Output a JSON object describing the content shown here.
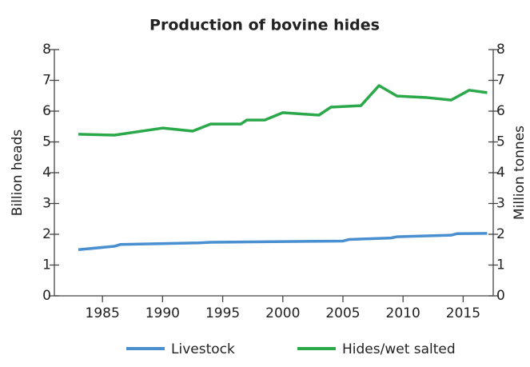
{
  "chart_data": {
    "type": "line",
    "title": "Production of bovine hides",
    "ylabel": "Billion heads",
    "y2label": "Million tonnes",
    "xlim": [
      1981,
      2017.5
    ],
    "xticks": [
      1985,
      1990,
      1995,
      2000,
      2005,
      2010,
      2015
    ],
    "ylim": [
      0,
      8
    ],
    "yticks": [
      0,
      1,
      2,
      3,
      4,
      5,
      6,
      7,
      8
    ],
    "y2lim": [
      0,
      8
    ],
    "y2ticks": [
      0,
      1,
      2,
      3,
      4,
      5,
      6,
      7,
      8
    ],
    "legend": "bottom",
    "series": [
      {
        "name": "Livestock",
        "color": "#4a8fcf",
        "x": [
          1983,
          1986,
          1986.5,
          1993,
          1994,
          2005,
          2005.5,
          2009,
          2009.5,
          2014,
          2014.5,
          2017
        ],
        "values": [
          1.5,
          1.61,
          1.67,
          1.72,
          1.74,
          1.78,
          1.83,
          1.88,
          1.92,
          1.97,
          2.02,
          2.03
        ]
      },
      {
        "name": "Hides/wet salted",
        "color": "#2aa84a",
        "axis": "y2",
        "x": [
          1983,
          1986,
          1990,
          1992.5,
          1994,
          1996.5,
          1997,
          1998.5,
          2000,
          2003,
          2004,
          2006.5,
          2008,
          2009.5,
          2012,
          2014,
          2015.5,
          2017
        ],
        "values": [
          5.25,
          5.22,
          5.45,
          5.35,
          5.58,
          5.58,
          5.71,
          5.71,
          5.95,
          5.87,
          6.13,
          6.18,
          6.83,
          6.49,
          6.44,
          6.36,
          6.68,
          6.6
        ]
      }
    ]
  }
}
